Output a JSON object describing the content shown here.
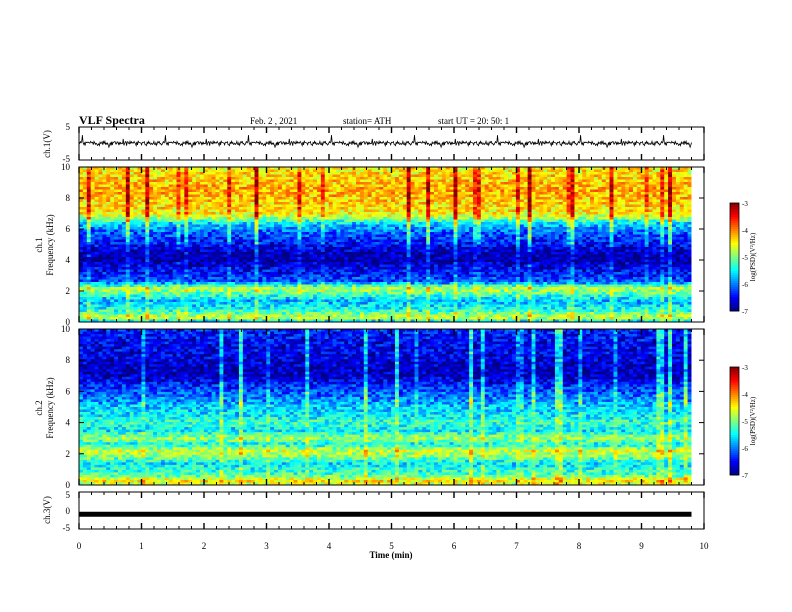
{
  "header": {
    "title": "VLF Spectra",
    "date": "Feb. 2 , 2021",
    "station": "station= ATH",
    "start": "start UT = 20: 50: 1"
  },
  "chart_data": [
    {
      "type": "line",
      "ylabel": "ch.1(V)",
      "ylim": [
        -5,
        5
      ],
      "yticks": [
        "5",
        "-5"
      ],
      "xlim": [
        0,
        10
      ],
      "x_end": 9.8,
      "baseline": 0,
      "noise_amplitude": 0.7,
      "color": "#000000"
    },
    {
      "type": "heatmap",
      "ylabel": "ch.1\nFrequency (kHz)",
      "ylim": [
        0,
        10
      ],
      "yticks": [
        "0",
        "2",
        "4",
        "6",
        "8",
        "10"
      ],
      "xlim": [
        0,
        10
      ],
      "x_end": 9.8,
      "colorbar": {
        "label": "log(PSD)(V²/Hz)",
        "range": [
          -7,
          -3
        ],
        "ticks": [
          "-3",
          "-4",
          "-5",
          "-6",
          "-7"
        ]
      },
      "profile_freq_khz": [
        0,
        0.3,
        0.6,
        1.0,
        1.4,
        1.8,
        2.2,
        2.6,
        3.0,
        3.5,
        4.0,
        4.5,
        5.0,
        5.5,
        6.0,
        6.4,
        6.7,
        7.0,
        7.5,
        8.0,
        8.5,
        9.0,
        9.5,
        10.0
      ],
      "profile_log_psd": [
        -5.8,
        -4.6,
        -5.2,
        -5.6,
        -5.8,
        -5.2,
        -4.8,
        -6.2,
        -6.4,
        -6.6,
        -6.9,
        -6.8,
        -6.5,
        -6.3,
        -6.0,
        -5.6,
        -4.9,
        -4.5,
        -4.4,
        -4.3,
        -4.2,
        -4.3,
        -4.4,
        -4.5
      ]
    },
    {
      "type": "heatmap",
      "ylabel": "ch.2\nFrequency (kHz)",
      "ylim": [
        0,
        10
      ],
      "yticks": [
        "0",
        "2",
        "4",
        "6",
        "8",
        "10"
      ],
      "xlim": [
        0,
        10
      ],
      "x_end": 9.8,
      "colorbar": {
        "label": "log(PSD)(V²/Hz)",
        "range": [
          -7,
          -3
        ],
        "ticks": [
          "-3",
          "-4",
          "-5",
          "-6",
          "-7"
        ]
      },
      "profile_freq_khz": [
        0,
        0.3,
        0.6,
        1.0,
        1.4,
        1.8,
        2.2,
        2.6,
        3.0,
        3.5,
        4.0,
        4.5,
        5.0,
        5.5,
        6.0,
        6.4,
        6.7,
        7.0,
        7.5,
        8.0,
        8.5,
        9.0,
        9.5,
        10.0
      ],
      "profile_log_psd": [
        -4.8,
        -4.4,
        -5.2,
        -5.4,
        -5.6,
        -5.0,
        -4.7,
        -5.5,
        -4.9,
        -5.6,
        -5.3,
        -5.6,
        -5.7,
        -6.0,
        -6.2,
        -6.4,
        -6.6,
        -6.8,
        -6.8,
        -6.7,
        -6.6,
        -6.6,
        -6.5,
        -6.4
      ]
    },
    {
      "type": "line",
      "ylabel": "ch.3(V)",
      "ylim": [
        -5,
        5
      ],
      "yticks": [
        "5",
        "0",
        "-5"
      ],
      "xlim": [
        0,
        10
      ],
      "x_end": 9.8,
      "baseline": -1,
      "noise_amplitude": 0,
      "color": "#000000"
    }
  ],
  "xaxis": {
    "label": "Time (min)",
    "ticks": [
      "0",
      "1",
      "2",
      "3",
      "4",
      "5",
      "6",
      "7",
      "8",
      "9",
      "10"
    ],
    "range": [
      0,
      10
    ]
  }
}
